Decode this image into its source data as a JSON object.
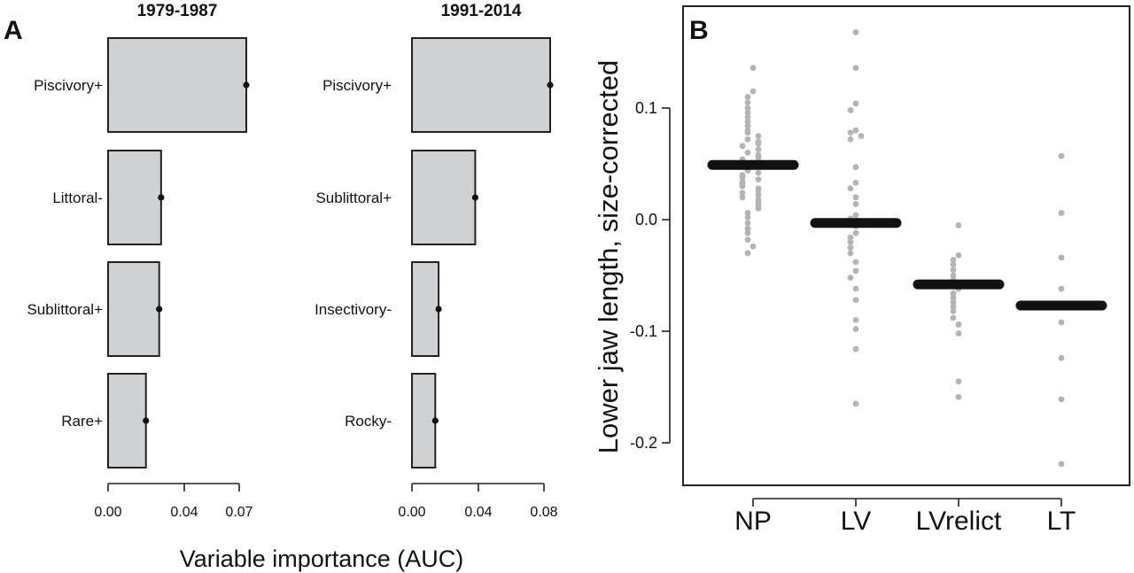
{
  "chart_data": [
    {
      "panel": "A",
      "type": "bar",
      "orientation": "horizontal",
      "title": "1979-1987",
      "categories": [
        "Piscivory+",
        "Littoral-",
        "Sublittoral+",
        "Rare+"
      ],
      "values": [
        0.073,
        0.028,
        0.027,
        0.02
      ],
      "xticks": [
        "0.00",
        "0.04",
        "0.07"
      ],
      "xlim": [
        0,
        0.073
      ],
      "colors": {
        "bar_fill": "#cfd1d3",
        "bar_stroke": "#222222",
        "dot": "#111111"
      }
    },
    {
      "panel": "",
      "type": "bar",
      "orientation": "horizontal",
      "title": "1991-2014",
      "categories": [
        "Piscivory+",
        "Sublittoral+",
        "Insectivory-",
        "Rocky-"
      ],
      "values": [
        0.083,
        0.038,
        0.016,
        0.014
      ],
      "xticks": [
        "0.00",
        "0.04",
        "0.08"
      ],
      "xlim": [
        0,
        0.083
      ],
      "xlabel": "Variable importance (AUC)",
      "colors": {
        "bar_fill": "#cfd1d3",
        "bar_stroke": "#222222",
        "dot": "#111111"
      }
    },
    {
      "panel": "B",
      "type": "scatter",
      "categories": [
        "NP",
        "LV",
        "LVrelict",
        "LT"
      ],
      "ylabel": "Lower jaw length, size-corrected",
      "yticks": [
        "-0.2",
        "-0.1",
        "0.0",
        "0.1"
      ],
      "ylim": [
        -0.235,
        0.178
      ],
      "means": [
        0.049,
        -0.003,
        -0.058,
        -0.077
      ],
      "points": [
        [
          0.136,
          0.115,
          0.11,
          0.105,
          0.1,
          0.096,
          0.092,
          0.088,
          0.084,
          0.08,
          0.078,
          0.075,
          0.072,
          0.07,
          0.068,
          0.066,
          0.063,
          0.06,
          0.058,
          0.056,
          0.054,
          0.052,
          0.046,
          0.044,
          0.042,
          0.04,
          0.038,
          0.036,
          0.034,
          0.032,
          0.03,
          0.028,
          0.026,
          0.024,
          0.022,
          0.02,
          0.018,
          0.015,
          0.012,
          0.01,
          0.006,
          0.002,
          -0.003,
          -0.008,
          -0.012,
          -0.018,
          -0.024,
          -0.03
        ],
        [
          0.168,
          0.136,
          0.104,
          0.098,
          0.08,
          0.078,
          0.075,
          0.072,
          0.047,
          0.033,
          0.028,
          0.02,
          0.014,
          0.004,
          0.001,
          -0.006,
          -0.012,
          -0.016,
          -0.02,
          -0.025,
          -0.03,
          -0.038,
          -0.046,
          -0.052,
          -0.062,
          -0.072,
          -0.09,
          -0.098,
          -0.116,
          -0.165
        ],
        [
          -0.005,
          -0.032,
          -0.036,
          -0.04,
          -0.045,
          -0.05,
          -0.054,
          -0.062,
          -0.066,
          -0.07,
          -0.074,
          -0.078,
          -0.082,
          -0.088,
          -0.094,
          -0.102,
          -0.145,
          -0.159
        ],
        [
          0.057,
          0.006,
          -0.034,
          -0.062,
          -0.092,
          -0.124,
          -0.161,
          -0.219
        ]
      ],
      "colors": {
        "point": "#b4b4b4",
        "mean_bar": "#111111",
        "frame": "#222222"
      }
    }
  ]
}
